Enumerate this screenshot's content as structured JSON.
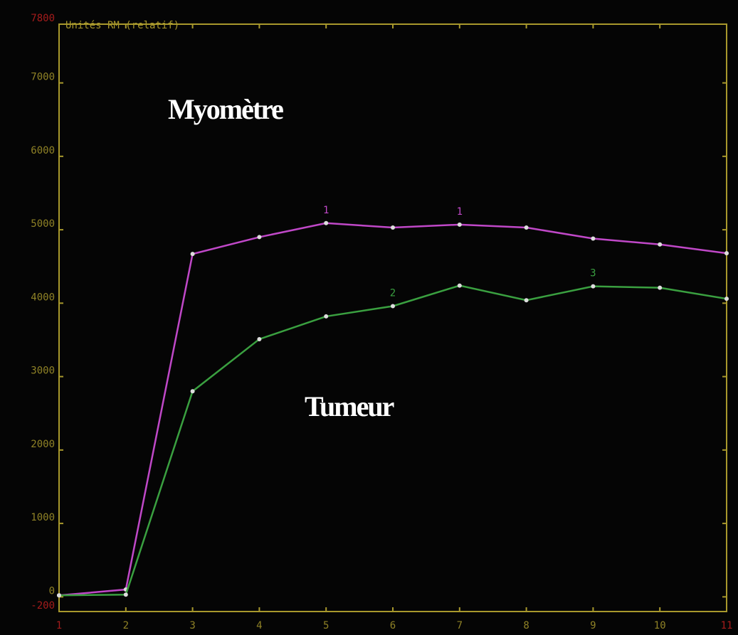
{
  "chart_data": {
    "type": "line",
    "title": "Unités RM (relatif)",
    "annotations": [
      "Myomètre",
      "Tumeur"
    ],
    "x": [
      1,
      2,
      3,
      4,
      5,
      6,
      7,
      8,
      9,
      10,
      11
    ],
    "xlim": [
      1,
      11
    ],
    "xticks": [
      1,
      2,
      3,
      4,
      5,
      6,
      7,
      8,
      9,
      10,
      11
    ],
    "ylim": [
      -200,
      7800
    ],
    "yticks": [
      -200,
      0,
      1000,
      2000,
      3000,
      4000,
      5000,
      6000,
      7000,
      7800
    ],
    "axis_color": "#a8982c",
    "limit_tick_color": "#c02020",
    "series": [
      {
        "name": "Myomètre",
        "color": "#c048c8",
        "values": [
          20,
          100,
          4670,
          4900,
          5090,
          5030,
          5070,
          5030,
          4880,
          4800,
          4680
        ],
        "point_labels": [
          {
            "x": 5,
            "label": "1"
          },
          {
            "x": 7,
            "label": "1"
          }
        ]
      },
      {
        "name": "Tumeur",
        "color": "#3aa040",
        "values": [
          20,
          30,
          2800,
          3510,
          3820,
          3960,
          4240,
          4040,
          4230,
          4210,
          4060
        ],
        "point_labels": [
          {
            "x": 6,
            "label": "2"
          },
          {
            "x": 9,
            "label": "3"
          }
        ]
      }
    ]
  }
}
